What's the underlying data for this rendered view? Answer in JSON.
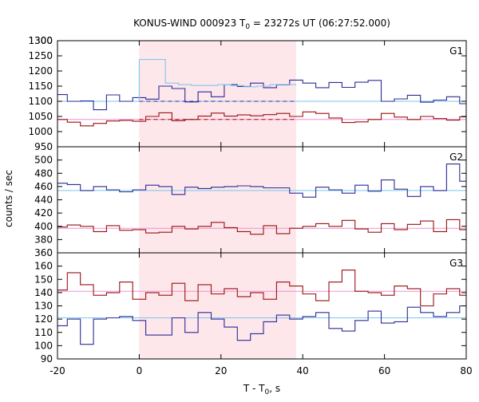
{
  "chart_data": {
    "type": "line",
    "title_main": "KONUS-WIND 000923 T",
    "title_sub": "0",
    "title_rest": " = 23272s UT (06:27:52.000)",
    "xlabel_main": "T - T",
    "xlabel_sub": "0",
    "xlabel_rest": ", s",
    "ylabel": "counts / sec",
    "xlim": [
      -20,
      80
    ],
    "x_ticks": [
      "-20",
      "0",
      "20",
      "40",
      "60",
      "80"
    ],
    "shaded_interval": [
      0,
      38.4
    ],
    "colors": {
      "blue": "#2b2b9a",
      "red": "#9a1212",
      "blue_bg": "#79c6ec",
      "red_bg": "#ee90d8",
      "shade": "#fde7ea",
      "fit": "#7ec8f0"
    },
    "panels": [
      {
        "label": "G1",
        "ylim": [
          950,
          1300
        ],
        "y_ticks": [
          "950",
          "1000",
          "1050",
          "1100",
          "1150",
          "1200",
          "1250",
          "1300"
        ],
        "bin_width": 3.2,
        "x_start": -20.8,
        "series": [
          {
            "color": "blue",
            "values": [
              1122,
              1100,
              1101,
              1072,
              1121,
              1100,
              1112,
              1107,
              1150,
              1142,
              1098,
              1131,
              1115,
              1155,
              1149,
              1160,
              1145,
              1154,
              1170,
              1160,
              1145,
              1162,
              1146,
              1163,
              1169,
              1100,
              1108,
              1120,
              1097,
              1104,
              1115,
              1092,
              1122,
              1100,
              1108,
              1095,
              1109,
              1117,
              1130,
              1116,
              1107,
              1111,
              1098,
              1100,
              1102,
              1098,
              1101,
              1099,
              1100,
              1101,
              1100,
              1099,
              1101,
              1100,
              1100,
              1100,
              1100
            ]
          },
          {
            "color": "red",
            "values": [
              1040,
              1031,
              1019,
              1027,
              1035,
              1037,
              1034,
              1050,
              1062,
              1036,
              1040,
              1051,
              1061,
              1051,
              1055,
              1052,
              1056,
              1060,
              1050,
              1065,
              1060,
              1045,
              1030,
              1032,
              1040,
              1060,
              1048,
              1040,
              1050,
              1043,
              1038,
              1049,
              1054,
              1046,
              1056,
              1064,
              1050,
              1041,
              1060,
              1048,
              1036,
              1045,
              1057,
              1064,
              1042,
              1032,
              1051,
              1040,
              1045,
              1038,
              1030,
              1039,
              1040,
              1041,
              1040,
              1039,
              1040
            ]
          }
        ],
        "background": {
          "blue": 1100,
          "red": 1040
        },
        "burst_blue": {
          "x": [
            0,
            3.2,
            6.4,
            9.6,
            12.8,
            16,
            19.2,
            22.4,
            25.6,
            28.8,
            32,
            35.2
          ],
          "values": [
            1238,
            1238,
            1160,
            1155,
            1152,
            1152,
            1155,
            1152,
            1148,
            1150,
            1155,
            1155
          ]
        },
        "burst_red": {
          "x": [
            0,
            3.2,
            6.4,
            9.6,
            12.8,
            16,
            19.2,
            22.4,
            25.6,
            28.8,
            32,
            35.2
          ],
          "values": [
            1180,
            1190,
            1178,
            1120,
            1140,
            1063,
            1041,
            1040,
            1041,
            1037,
            1050,
            1122
          ]
        }
      },
      {
        "label": "G2",
        "ylim": [
          360,
          520
        ],
        "y_ticks": [
          "360",
          "380",
          "400",
          "420",
          "440",
          "460",
          "480",
          "500"
        ],
        "bin_width": 3.2,
        "x_start": -20.8,
        "series": [
          {
            "color": "blue",
            "values": [
              465,
              463,
              454,
              460,
              455,
              452,
              455,
              462,
              460,
              448,
              459,
              457,
              459,
              460,
              461,
              460,
              458,
              458,
              450,
              444,
              459,
              455,
              450,
              462,
              453,
              470,
              456,
              445,
              460,
              454,
              494,
              468,
              459,
              460,
              455,
              450,
              449,
              445,
              462,
              458,
              450,
              470,
              448,
              462,
              460,
              465,
              444,
              462,
              455,
              470,
              449,
              455,
              458,
              450,
              475,
              433,
              456
            ]
          },
          {
            "color": "red",
            "values": [
              399,
              402,
              400,
              392,
              401,
              394,
              395,
              390,
              391,
              400,
              396,
              400,
              406,
              398,
              392,
              388,
              401,
              389,
              397,
              400,
              404,
              400,
              409,
              396,
              391,
              404,
              395,
              403,
              408,
              392,
              410,
              395,
              409,
              414,
              404,
              386,
              399,
              396,
              400,
              398,
              405,
              395,
              410,
              403,
              402,
              392,
              402,
              395,
              409,
              399,
              395,
              402,
              398,
              399,
              402,
              395,
              399
            ]
          }
        ],
        "background": {
          "blue": 454,
          "red": 397
        }
      },
      {
        "label": "G3",
        "ylim": [
          90,
          170
        ],
        "y_ticks": [
          "90",
          "100",
          "110",
          "120",
          "130",
          "140",
          "150",
          "160"
        ],
        "bin_width": 3.2,
        "x_start": -20.8,
        "series": [
          {
            "color": "blue",
            "values": [
              115,
              120,
              101,
              120,
              121,
              122,
              119,
              108,
              108,
              121,
              110,
              125,
              120,
              114,
              104,
              109,
              118,
              123,
              120,
              122,
              125,
              113,
              111,
              119,
              126,
              117,
              118,
              129,
              125,
              122,
              125,
              130,
              115,
              124,
              128,
              120,
              121,
              125,
              124,
              126,
              119,
              130,
              126,
              112,
              114,
              121,
              122,
              114,
              121,
              119,
              121,
              120,
              122,
              124,
              121,
              113,
              125
            ]
          },
          {
            "color": "red",
            "values": [
              142,
              155,
              146,
              138,
              140,
              148,
              135,
              140,
              138,
              147,
              134,
              146,
              139,
              143,
              137,
              140,
              135,
              148,
              145,
              139,
              134,
              148,
              157,
              141,
              140,
              138,
              145,
              143,
              130,
              139,
              143,
              138,
              141,
              140,
              143,
              148,
              134,
              140,
              141,
              136,
              145,
              146,
              142,
              140,
              139,
              143,
              144,
              141,
              142,
              140,
              148,
              137,
              139,
              141,
              127,
              155,
              139
            ]
          }
        ],
        "background": {
          "blue": 121,
          "red": 141
        }
      }
    ]
  }
}
